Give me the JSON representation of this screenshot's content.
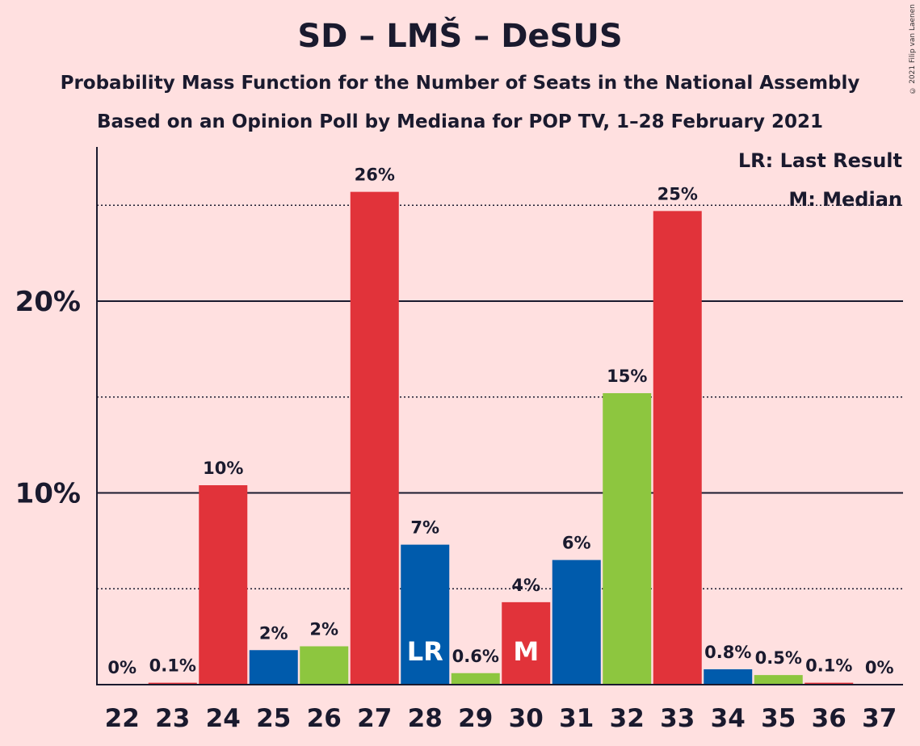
{
  "header": {
    "title": "SD – LMŠ – DeSUS",
    "subtitle1": "Probability Mass Function for the Number of Seats in the National Assembly",
    "subtitle2": "Based on an Opinion Poll by Mediana for POP TV, 1–28 February 2021"
  },
  "legend": {
    "last_result": "LR: Last Result",
    "median": "M: Median"
  },
  "copyright": "© 2021 Filip van Laenen",
  "colors": {
    "background": "#FFE0E0",
    "red": "#E1333A",
    "blue": "#005BAC",
    "green": "#8DC63F"
  },
  "chart_data": {
    "type": "bar",
    "categories": [
      "22",
      "23",
      "24",
      "25",
      "26",
      "27",
      "28",
      "29",
      "30",
      "31",
      "32",
      "33",
      "34",
      "35",
      "36",
      "37"
    ],
    "values": [
      0,
      0.1,
      10.4,
      1.8,
      2.0,
      25.7,
      7.3,
      0.6,
      4.3,
      6.5,
      15.2,
      24.7,
      0.8,
      0.5,
      0.1,
      0
    ],
    "data_labels": [
      "0%",
      "0.1%",
      "10%",
      "2%",
      "2%",
      "26%",
      "7%",
      "0.6%",
      "4%",
      "6%",
      "15%",
      "25%",
      "0.8%",
      "0.5%",
      "0.1%",
      "0%"
    ],
    "bar_colors": [
      "red",
      "red",
      "red",
      "blue",
      "green",
      "red",
      "blue",
      "green",
      "red",
      "blue",
      "green",
      "red",
      "blue",
      "green",
      "red",
      "blue"
    ],
    "bar_markers": {
      "28": "LR",
      "30": "M"
    },
    "ylim": [
      0,
      28
    ],
    "yticks": [
      {
        "value": 10,
        "label": "10%"
      },
      {
        "value": 20,
        "label": "20%"
      }
    ],
    "minor_gridlines": [
      5,
      15,
      25
    ],
    "xlabel": "",
    "ylabel": ""
  }
}
